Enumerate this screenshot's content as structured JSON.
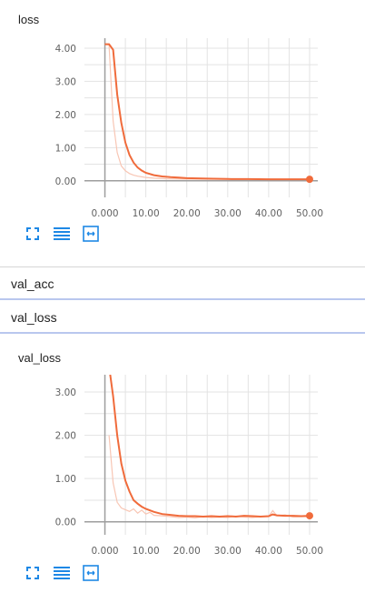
{
  "cards": [
    {
      "title": "loss",
      "toolbar": [
        "fullscreen-icon",
        "list-icon",
        "fit-domain-icon"
      ]
    },
    {
      "title": "val_loss",
      "toolbar": [
        "fullscreen-icon",
        "list-icon",
        "fit-domain-icon"
      ]
    }
  ],
  "run_rows": [
    {
      "label": "val_acc"
    },
    {
      "label": "val_loss"
    }
  ],
  "colors": {
    "smoothed_line": "#f06b3b",
    "raw_line": "#f8c6b4",
    "grid": "#e3e3e3",
    "axis": "#9e9e9e",
    "toolbar_icon": "#1e88e5"
  },
  "chart_data": [
    {
      "type": "line",
      "title": "loss",
      "xlim": [
        -5,
        52
      ],
      "ylim": [
        -0.5,
        4.3
      ],
      "x_ticks": [
        "0.000",
        "10.00",
        "20.00",
        "30.00",
        "40.00",
        "50.00"
      ],
      "x_tick_values": [
        0,
        10,
        20,
        30,
        40,
        50
      ],
      "y_ticks": [
        "0.00",
        "1.00",
        "2.00",
        "3.00",
        "4.00"
      ],
      "y_tick_values": [
        0,
        1,
        2,
        3,
        4
      ],
      "grid": true,
      "series": [
        {
          "role": "smoothed",
          "x": [
            0,
            1,
            2,
            3,
            4,
            5,
            6,
            7,
            8,
            9,
            10,
            12,
            14,
            16,
            18,
            20,
            25,
            30,
            35,
            40,
            45,
            50
          ],
          "y": [
            4.12,
            4.12,
            3.95,
            2.6,
            1.75,
            1.15,
            0.78,
            0.55,
            0.4,
            0.31,
            0.24,
            0.17,
            0.13,
            0.11,
            0.095,
            0.08,
            0.065,
            0.055,
            0.05,
            0.045,
            0.045,
            0.045
          ]
        },
        {
          "role": "raw",
          "x": [
            0,
            1,
            2,
            3,
            4,
            5,
            6,
            7,
            8,
            10,
            12,
            15,
            20,
            30,
            40,
            50
          ],
          "y": [
            4.12,
            4.1,
            1.8,
            0.85,
            0.45,
            0.3,
            0.22,
            0.17,
            0.14,
            0.1,
            0.08,
            0.06,
            0.05,
            0.045,
            0.04,
            0.04
          ]
        }
      ]
    },
    {
      "type": "line",
      "title": "val_loss",
      "xlim": [
        -5,
        52
      ],
      "ylim": [
        -0.3,
        3.4
      ],
      "x_ticks": [
        "0.000",
        "10.00",
        "20.00",
        "30.00",
        "40.00",
        "50.00"
      ],
      "x_tick_values": [
        0,
        10,
        20,
        30,
        40,
        50
      ],
      "y_ticks": [
        "0.00",
        "1.00",
        "2.00",
        "3.00"
      ],
      "y_tick_values": [
        0,
        1,
        2,
        3
      ],
      "grid": true,
      "series": [
        {
          "role": "smoothed",
          "x": [
            1,
            2,
            3,
            4,
            5,
            6,
            7,
            8,
            9,
            10,
            12,
            14,
            16,
            18,
            20,
            22,
            24,
            26,
            28,
            30,
            32,
            34,
            36,
            38,
            40,
            41,
            42,
            44,
            46,
            48,
            50
          ],
          "y": [
            3.6,
            2.9,
            2.0,
            1.35,
            0.95,
            0.7,
            0.5,
            0.42,
            0.35,
            0.3,
            0.23,
            0.18,
            0.16,
            0.14,
            0.13,
            0.13,
            0.12,
            0.13,
            0.12,
            0.13,
            0.12,
            0.14,
            0.13,
            0.12,
            0.13,
            0.17,
            0.15,
            0.14,
            0.14,
            0.13,
            0.14
          ]
        },
        {
          "role": "raw",
          "x": [
            1,
            2,
            3,
            4,
            5,
            6,
            7,
            8,
            9,
            10,
            11,
            12,
            14,
            16,
            18,
            20,
            22,
            24,
            26,
            28,
            30,
            32,
            34,
            36,
            38,
            40,
            41,
            42,
            44,
            46,
            48,
            50
          ],
          "y": [
            2.0,
            0.9,
            0.45,
            0.32,
            0.28,
            0.24,
            0.3,
            0.2,
            0.27,
            0.18,
            0.22,
            0.15,
            0.14,
            0.12,
            0.1,
            0.11,
            0.09,
            0.12,
            0.1,
            0.11,
            0.1,
            0.13,
            0.11,
            0.1,
            0.12,
            0.12,
            0.26,
            0.14,
            0.16,
            0.11,
            0.12,
            0.12
          ]
        }
      ]
    }
  ]
}
